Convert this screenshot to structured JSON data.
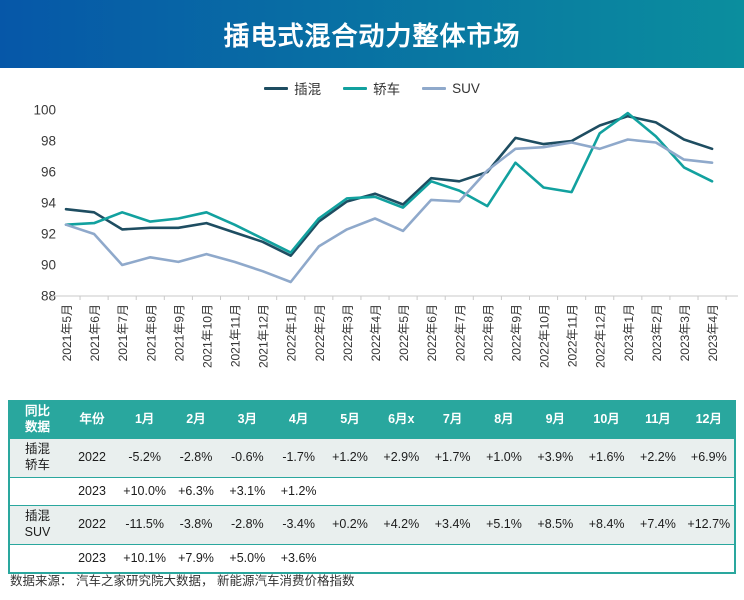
{
  "header": {
    "title": "插电式混合动力整体市场"
  },
  "chart_data": {
    "type": "line",
    "title": "",
    "xlabel": "",
    "ylabel": "",
    "ylim": [
      88,
      100
    ],
    "yticks": [
      88,
      90,
      92,
      94,
      96,
      98,
      100
    ],
    "grid": false,
    "legend_position": "top",
    "categories": [
      "2021年5月",
      "2021年6月",
      "2021年7月",
      "2021年8月",
      "2021年9月",
      "2021年10月",
      "2021年11月",
      "2021年12月",
      "2022年1月",
      "2022年2月",
      "2022年3月",
      "2022年4月",
      "2022年5月",
      "2022年6月",
      "2022年7月",
      "2022年8月",
      "2022年9月",
      "2022年10月",
      "2022年11月",
      "2022年12月",
      "2023年1月",
      "2023年2月",
      "2023年3月",
      "2023年4月"
    ],
    "series": [
      {
        "name": "插混",
        "color": "#1e4d61",
        "values": [
          93.6,
          93.4,
          92.3,
          92.4,
          92.4,
          92.7,
          92.1,
          91.5,
          90.6,
          92.8,
          94.1,
          94.6,
          93.9,
          95.6,
          95.4,
          96.0,
          98.2,
          97.8,
          98.0,
          99.0,
          99.6,
          99.2,
          98.1,
          97.5
        ]
      },
      {
        "name": "轿车",
        "color": "#12a19f",
        "values": [
          92.6,
          92.7,
          93.4,
          92.8,
          93.0,
          93.4,
          92.6,
          91.7,
          90.8,
          93.0,
          94.3,
          94.4,
          93.7,
          95.4,
          94.8,
          93.8,
          96.6,
          95.0,
          94.7,
          98.5,
          99.8,
          98.3,
          96.3,
          95.4
        ]
      },
      {
        "name": "SUV",
        "color": "#8fa9cb",
        "values": [
          92.6,
          92.0,
          90.0,
          90.5,
          90.2,
          90.7,
          90.2,
          89.6,
          88.9,
          91.2,
          92.3,
          93.0,
          92.2,
          94.2,
          94.1,
          96.1,
          97.5,
          97.6,
          97.9,
          97.5,
          98.1,
          97.9,
          96.8,
          96.6
        ]
      }
    ]
  },
  "table": {
    "corner_label": "同比\n数据",
    "year_label": "年份",
    "month_labels": [
      "1月",
      "2月",
      "3月",
      "4月",
      "5月",
      "6月x",
      "7月",
      "8月",
      "9月",
      "10月",
      "11月",
      "12月"
    ],
    "groups": [
      {
        "label": "插混\n轿车",
        "rows": [
          {
            "year": "2022",
            "values": [
              "-5.2%",
              "-2.8%",
              "-0.6%",
              "-1.7%",
              "+1.2%",
              "+2.9%",
              "+1.7%",
              "+1.0%",
              "+3.9%",
              "+1.6%",
              "+2.2%",
              "+6.9%"
            ]
          },
          {
            "year": "2023",
            "values": [
              "+10.0%",
              "+6.3%",
              "+3.1%",
              "+1.2%",
              "",
              "",
              "",
              "",
              "",
              "",
              "",
              ""
            ]
          }
        ]
      },
      {
        "label": "插混\nSUV",
        "rows": [
          {
            "year": "2022",
            "values": [
              "-11.5%",
              "-3.8%",
              "-2.8%",
              "-3.4%",
              "+0.2%",
              "+4.2%",
              "+3.4%",
              "+5.1%",
              "+8.5%",
              "+8.4%",
              "+7.4%",
              "+12.7%"
            ]
          },
          {
            "year": "2023",
            "values": [
              "+10.1%",
              "+7.9%",
              "+5.0%",
              "+3.6%",
              "",
              "",
              "",
              "",
              "",
              "",
              "",
              ""
            ]
          }
        ]
      }
    ]
  },
  "footer": {
    "source": "数据来源： 汽车之家研究院大数据， 新能源汽车消费价格指数"
  },
  "colors": {
    "header_gradient_left": "#0657a8",
    "header_gradient_right": "#0b8e9e",
    "table_header_bg": "#29a79e",
    "table_row_alt_bg": "#e9efee",
    "axis_line": "#c9c9c9",
    "series_phev": "#1e4d61",
    "series_sedan": "#12a19f",
    "series_suv": "#8fa9cb"
  }
}
